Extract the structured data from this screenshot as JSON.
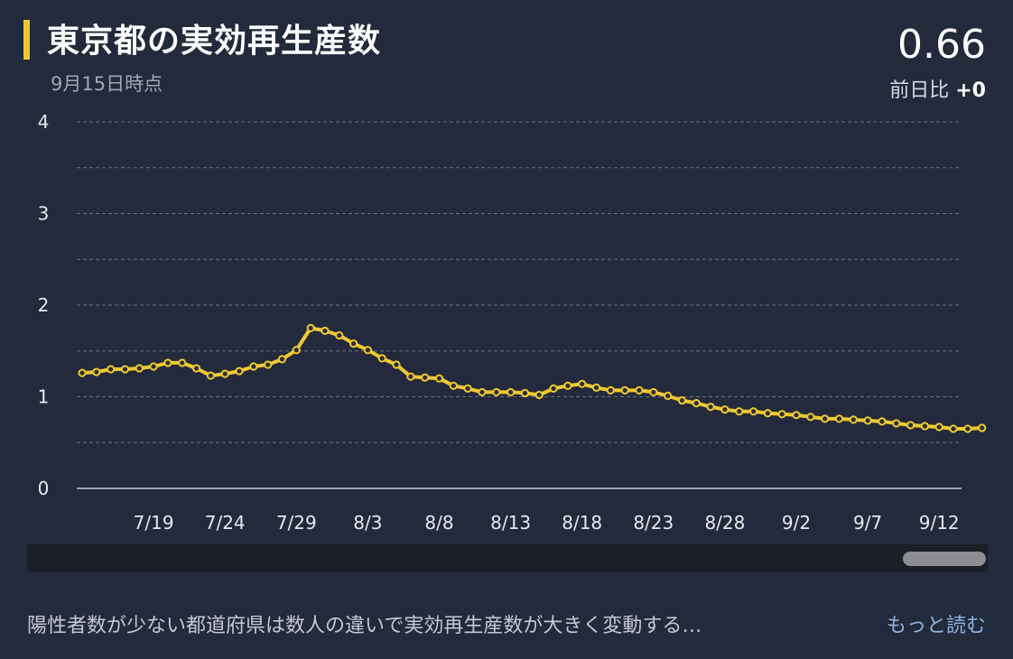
{
  "header": {
    "title": "東京都の実効再生産数",
    "as_of": "9月15日時点",
    "current_value": "0.66",
    "change_label": "前日比",
    "change_value": "+0"
  },
  "footer": {
    "note": "陽性者数が少ない都道府県は数人の違いで実効再生産数が大きく変動する…",
    "more_link": "もっと読む"
  },
  "colors": {
    "background": "#222a3b",
    "line": "#f0c930",
    "accent": "#f0c930",
    "grid": "#6a7183",
    "axis_text": "#e6e8ec",
    "link": "#8fb5e6"
  },
  "chart_data": {
    "type": "line",
    "title": "東京都の実効再生産数",
    "xlabel": "",
    "ylabel": "",
    "ylim": [
      0,
      4
    ],
    "yticks": [
      "0",
      "1",
      "2",
      "3",
      "4"
    ],
    "grid": true,
    "x_tick_labels": [
      "7/19",
      "7/24",
      "7/29",
      "8/3",
      "8/8",
      "8/13",
      "8/18",
      "8/23",
      "8/28",
      "9/2",
      "9/7",
      "9/12"
    ],
    "x_tick_dates": [
      "7/19",
      "7/24",
      "7/29",
      "8/3",
      "8/8",
      "8/13",
      "8/18",
      "8/23",
      "8/28",
      "9/2",
      "9/7",
      "9/12"
    ],
    "series": [
      {
        "name": "",
        "x": [
          "7/14",
          "7/15",
          "7/16",
          "7/17",
          "7/18",
          "7/19",
          "7/20",
          "7/21",
          "7/22",
          "7/23",
          "7/24",
          "7/25",
          "7/26",
          "7/27",
          "7/28",
          "7/29",
          "7/30",
          "7/31",
          "8/1",
          "8/2",
          "8/3",
          "8/4",
          "8/5",
          "8/6",
          "8/7",
          "8/8",
          "8/9",
          "8/10",
          "8/11",
          "8/12",
          "8/13",
          "8/14",
          "8/15",
          "8/16",
          "8/17",
          "8/18",
          "8/19",
          "8/20",
          "8/21",
          "8/22",
          "8/23",
          "8/24",
          "8/25",
          "8/26",
          "8/27",
          "8/28",
          "8/29",
          "8/30",
          "8/31",
          "9/1",
          "9/2",
          "9/3",
          "9/4",
          "9/5",
          "9/6",
          "9/7",
          "9/8",
          "9/9",
          "9/10",
          "9/11",
          "9/12",
          "9/13",
          "9/14",
          "9/15"
        ],
        "values": [
          1.26,
          1.27,
          1.3,
          1.3,
          1.31,
          1.33,
          1.37,
          1.37,
          1.31,
          1.23,
          1.25,
          1.28,
          1.33,
          1.35,
          1.41,
          1.51,
          1.75,
          1.72,
          1.67,
          1.58,
          1.51,
          1.42,
          1.35,
          1.22,
          1.21,
          1.2,
          1.12,
          1.09,
          1.05,
          1.05,
          1.05,
          1.04,
          1.02,
          1.09,
          1.12,
          1.14,
          1.1,
          1.07,
          1.07,
          1.07,
          1.05,
          1.01,
          0.96,
          0.93,
          0.89,
          0.86,
          0.84,
          0.84,
          0.82,
          0.81,
          0.8,
          0.78,
          0.76,
          0.76,
          0.75,
          0.74,
          0.73,
          0.71,
          0.69,
          0.68,
          0.67,
          0.65,
          0.65,
          0.66
        ]
      }
    ]
  }
}
